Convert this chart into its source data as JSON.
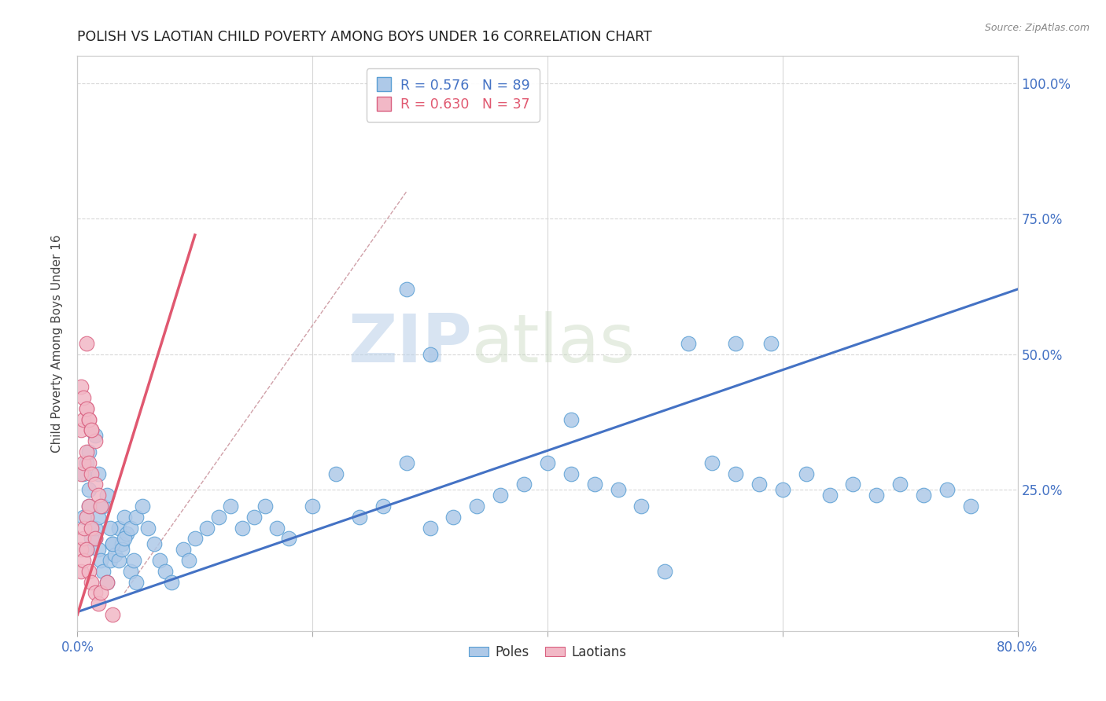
{
  "title": "POLISH VS LAOTIAN CHILD POVERTY AMONG BOYS UNDER 16 CORRELATION CHART",
  "source": "Source: ZipAtlas.com",
  "ylabel": "Child Poverty Among Boys Under 16",
  "watermark_zip": "ZIP",
  "watermark_atlas": "atlas",
  "legend_blue_r": "R = 0.576",
  "legend_blue_n": "N = 89",
  "legend_pink_r": "R = 0.630",
  "legend_pink_n": "N = 37",
  "xlim": [
    0.0,
    0.8
  ],
  "ylim": [
    -0.01,
    1.05
  ],
  "blue_color": "#aec9e8",
  "blue_edge_color": "#5a9fd4",
  "pink_color": "#f2b8c6",
  "pink_edge_color": "#d96080",
  "blue_line_color": "#4472c4",
  "pink_line_color": "#e05870",
  "grid_color": "#d8d8d8",
  "axis_tick_color": "#4472c4",
  "right_label_color": "#4472c4",
  "blue_scatter_x": [
    0.005,
    0.01,
    0.01,
    0.012,
    0.015,
    0.018,
    0.02,
    0.022,
    0.025,
    0.028,
    0.03,
    0.032,
    0.035,
    0.038,
    0.04,
    0.042,
    0.045,
    0.048,
    0.05,
    0.005,
    0.008,
    0.01,
    0.015,
    0.018,
    0.02,
    0.008,
    0.012,
    0.015,
    0.018,
    0.022,
    0.025,
    0.028,
    0.03,
    0.035,
    0.038,
    0.04,
    0.045,
    0.05,
    0.055,
    0.06,
    0.065,
    0.07,
    0.075,
    0.08,
    0.09,
    0.095,
    0.1,
    0.11,
    0.12,
    0.13,
    0.14,
    0.15,
    0.16,
    0.17,
    0.18,
    0.2,
    0.22,
    0.24,
    0.26,
    0.28,
    0.3,
    0.32,
    0.34,
    0.36,
    0.38,
    0.4,
    0.42,
    0.44,
    0.46,
    0.48,
    0.5,
    0.52,
    0.54,
    0.56,
    0.58,
    0.6,
    0.62,
    0.64,
    0.66,
    0.68,
    0.7,
    0.72,
    0.74,
    0.76,
    0.28,
    0.3,
    0.42,
    0.56,
    0.59
  ],
  "blue_scatter_y": [
    0.2,
    0.25,
    0.22,
    0.18,
    0.16,
    0.14,
    0.12,
    0.1,
    0.08,
    0.12,
    0.15,
    0.13,
    0.18,
    0.15,
    0.2,
    0.17,
    0.1,
    0.12,
    0.08,
    0.28,
    0.3,
    0.32,
    0.35,
    0.28,
    0.22,
    0.14,
    0.16,
    0.18,
    0.2,
    0.22,
    0.24,
    0.18,
    0.15,
    0.12,
    0.14,
    0.16,
    0.18,
    0.2,
    0.22,
    0.18,
    0.15,
    0.12,
    0.1,
    0.08,
    0.14,
    0.12,
    0.16,
    0.18,
    0.2,
    0.22,
    0.18,
    0.2,
    0.22,
    0.18,
    0.16,
    0.22,
    0.28,
    0.2,
    0.22,
    0.3,
    0.18,
    0.2,
    0.22,
    0.24,
    0.26,
    0.3,
    0.28,
    0.26,
    0.25,
    0.22,
    0.1,
    0.52,
    0.3,
    0.28,
    0.26,
    0.25,
    0.28,
    0.24,
    0.26,
    0.24,
    0.26,
    0.24,
    0.25,
    0.22,
    0.62,
    0.5,
    0.38,
    0.52,
    0.52
  ],
  "pink_scatter_x": [
    0.003,
    0.005,
    0.006,
    0.008,
    0.01,
    0.012,
    0.015,
    0.003,
    0.005,
    0.008,
    0.01,
    0.012,
    0.015,
    0.018,
    0.02,
    0.003,
    0.005,
    0.008,
    0.01,
    0.012,
    0.015,
    0.003,
    0.005,
    0.008,
    0.01,
    0.012,
    0.003,
    0.005,
    0.008,
    0.01,
    0.012,
    0.015,
    0.018,
    0.02,
    0.025,
    0.008,
    0.03
  ],
  "pink_scatter_y": [
    0.14,
    0.16,
    0.18,
    0.2,
    0.22,
    0.18,
    0.16,
    0.28,
    0.3,
    0.32,
    0.3,
    0.28,
    0.26,
    0.24,
    0.22,
    0.36,
    0.38,
    0.4,
    0.38,
    0.36,
    0.34,
    0.44,
    0.42,
    0.4,
    0.38,
    0.36,
    0.1,
    0.12,
    0.14,
    0.1,
    0.08,
    0.06,
    0.04,
    0.06,
    0.08,
    0.52,
    0.02
  ],
  "blue_regr": [
    0.0,
    0.025,
    0.8,
    0.62
  ],
  "pink_regr": [
    0.0,
    0.02,
    0.1,
    0.72
  ],
  "diag_line": [
    0.04,
    0.06,
    0.28,
    0.8
  ]
}
